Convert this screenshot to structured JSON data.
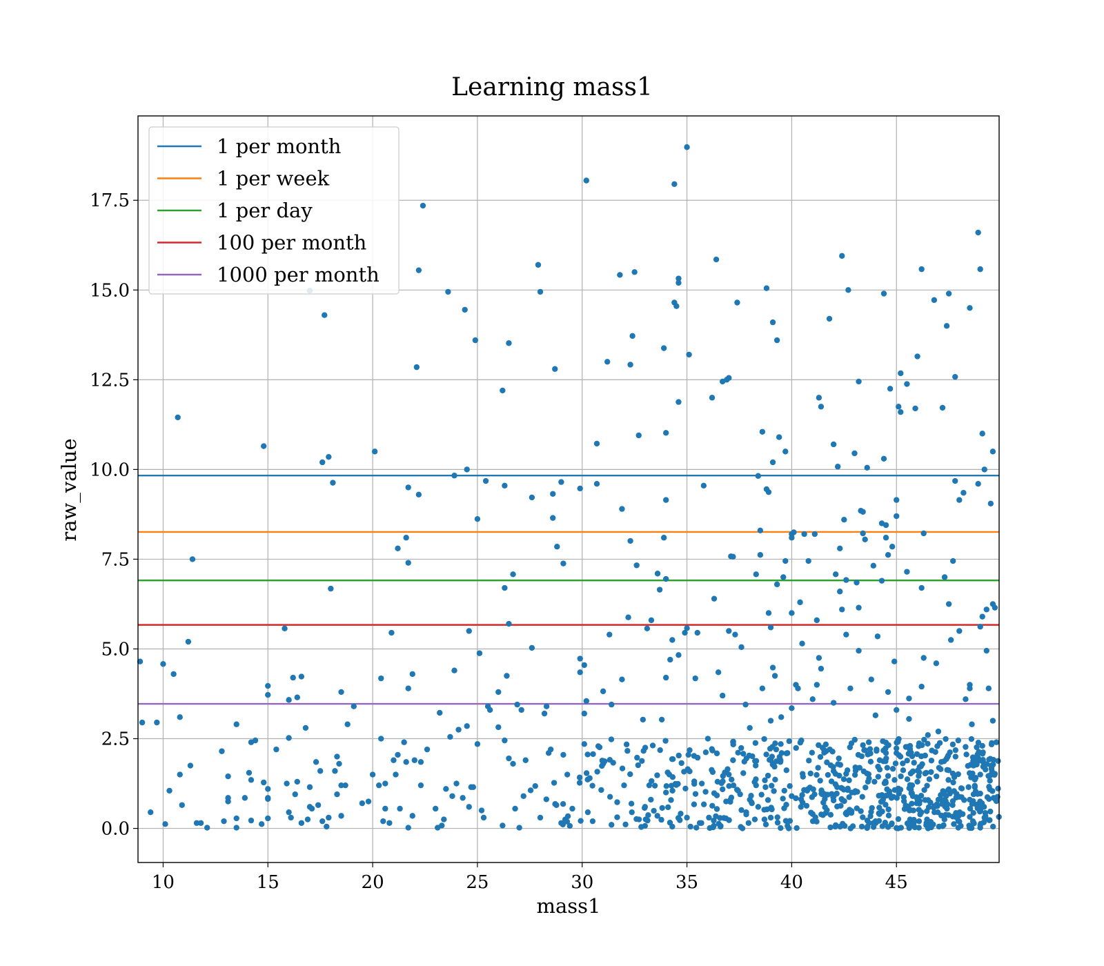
{
  "chart_data": {
    "type": "scatter",
    "title": "Learning mass1",
    "xlabel": "mass1",
    "ylabel": "raw_value",
    "xlim": [
      8.8,
      49.9
    ],
    "ylim": [
      -0.95,
      19.85
    ],
    "xticks": [
      10,
      15,
      20,
      25,
      30,
      35,
      40,
      45
    ],
    "xtick_labels": [
      "10",
      "15",
      "20",
      "25",
      "30",
      "35",
      "40",
      "45"
    ],
    "yticks": [
      0.0,
      2.5,
      5.0,
      7.5,
      10.0,
      12.5,
      15.0,
      17.5
    ],
    "ytick_labels": [
      "0.0",
      "2.5",
      "5.0",
      "7.5",
      "10.0",
      "12.5",
      "15.0",
      "17.5"
    ],
    "grid": true,
    "legend_position": "top-left",
    "point_color": "#1f77b4",
    "thresholds": [
      {
        "name": "1 per month",
        "value": 9.83,
        "color": "#1f77b4"
      },
      {
        "name": "1 per week",
        "value": 8.26,
        "color": "#ff7f0e"
      },
      {
        "name": "1 per day",
        "value": 6.91,
        "color": "#2ca02c"
      },
      {
        "name": "100 per month",
        "value": 5.67,
        "color": "#d62728"
      },
      {
        "name": "1000 per month",
        "value": 3.47,
        "color": "#9467bd"
      }
    ],
    "points": [
      [
        10.7,
        11.45
      ],
      [
        11.4,
        7.5
      ],
      [
        11.2,
        5.2
      ],
      [
        10.0,
        4.58
      ],
      [
        10.5,
        4.3
      ],
      [
        8.9,
        4.65
      ],
      [
        10.8,
        3.1
      ],
      [
        9.0,
        2.95
      ],
      [
        9.7,
        2.95
      ],
      [
        10.8,
        1.5
      ],
      [
        11.3,
        1.75
      ],
      [
        10.3,
        1.05
      ],
      [
        10.9,
        0.65
      ],
      [
        9.4,
        0.45
      ],
      [
        10.1,
        0.12
      ],
      [
        11.6,
        0.15
      ],
      [
        11.8,
        0.15
      ],
      [
        12.1,
        0.02
      ],
      [
        14.8,
        10.65
      ],
      [
        15.0,
        3.97
      ],
      [
        15.0,
        3.72
      ],
      [
        13.5,
        2.9
      ],
      [
        12.8,
        2.15
      ],
      [
        13.1,
        1.45
      ],
      [
        13.1,
        0.85
      ],
      [
        13.1,
        0.75
      ],
      [
        13.9,
        0.85
      ],
      [
        14.1,
        1.55
      ],
      [
        14.2,
        1.35
      ],
      [
        14.2,
        2.4
      ],
      [
        14.4,
        2.45
      ],
      [
        14.8,
        1.28
      ],
      [
        15.0,
        1.1
      ],
      [
        15.0,
        0.85
      ],
      [
        15.0,
        0.82
      ],
      [
        12.9,
        0.2
      ],
      [
        13.5,
        0.28
      ],
      [
        14.2,
        0.22
      ],
      [
        14.7,
        0.12
      ],
      [
        15.0,
        0.28
      ],
      [
        13.5,
        0.02
      ],
      [
        15.8,
        5.57
      ],
      [
        16.0,
        3.58
      ],
      [
        16.2,
        4.2
      ],
      [
        16.6,
        4.23
      ],
      [
        16.4,
        3.65
      ],
      [
        16.0,
        2.52
      ],
      [
        16.8,
        2.8
      ],
      [
        15.9,
        1.25
      ],
      [
        15.4,
        2.2
      ],
      [
        16.0,
        0.45
      ],
      [
        16.1,
        0.3
      ],
      [
        16.4,
        1.3
      ],
      [
        16.6,
        0.15
      ],
      [
        16.9,
        0.25
      ],
      [
        17.0,
        0.6
      ],
      [
        17.0,
        1.15
      ],
      [
        17.1,
        0.55
      ],
      [
        16.3,
        0.95
      ],
      [
        17.0,
        14.98
      ],
      [
        17.7,
        14.3
      ],
      [
        17.6,
        10.2
      ],
      [
        17.9,
        10.35
      ],
      [
        18.1,
        9.63
      ],
      [
        18.0,
        6.68
      ],
      [
        18.5,
        3.8
      ],
      [
        17.3,
        1.85
      ],
      [
        17.5,
        1.6
      ],
      [
        17.4,
        0.65
      ],
      [
        17.8,
        0.05
      ],
      [
        17.9,
        0.3
      ],
      [
        18.3,
        2.0
      ],
      [
        18.2,
        1.6
      ],
      [
        18.3,
        0.95
      ],
      [
        18.5,
        1.2
      ],
      [
        18.7,
        1.2
      ],
      [
        18.4,
        1.8
      ],
      [
        18.8,
        2.9
      ],
      [
        18.5,
        0.35
      ],
      [
        17.6,
        0.2
      ],
      [
        19.1,
        3.4
      ],
      [
        19.5,
        0.7
      ],
      [
        19.8,
        0.75
      ],
      [
        20.0,
        1.5
      ],
      [
        20.1,
        10.5
      ],
      [
        20.4,
        4.18
      ],
      [
        20.4,
        2.5
      ],
      [
        20.3,
        1.2
      ],
      [
        20.6,
        1.25
      ],
      [
        20.5,
        0.2
      ],
      [
        20.8,
        0.15
      ],
      [
        20.9,
        5.45
      ],
      [
        21.0,
        1.9
      ],
      [
        21.1,
        1.5
      ],
      [
        21.2,
        2.05
      ],
      [
        21.3,
        0.55
      ],
      [
        21.5,
        2.4
      ],
      [
        21.6,
        1.85
      ],
      [
        21.2,
        7.8
      ],
      [
        21.6,
        8.1
      ],
      [
        21.7,
        7.4
      ],
      [
        21.7,
        3.9
      ],
      [
        21.7,
        9.5
      ],
      [
        21.9,
        4.3
      ],
      [
        22.0,
        1.9
      ],
      [
        22.1,
        12.85
      ],
      [
        22.2,
        9.3
      ],
      [
        22.3,
        1.85
      ],
      [
        22.4,
        17.35
      ],
      [
        22.6,
        2.2
      ],
      [
        22.2,
        15.55
      ],
      [
        21.9,
        0.35
      ],
      [
        21.7,
        0.02
      ],
      [
        22.3,
        1.2
      ],
      [
        20.6,
        0.55
      ],
      [
        23.2,
        3.22
      ],
      [
        23.1,
        0.02
      ],
      [
        23.3,
        0.08
      ],
      [
        23.6,
        14.95
      ],
      [
        23.9,
        9.83
      ],
      [
        23.9,
        4.4
      ],
      [
        23.7,
        2.55
      ],
      [
        23.8,
        0.9
      ],
      [
        24.1,
        2.75
      ],
      [
        24.3,
        0.85
      ],
      [
        24.4,
        14.45
      ],
      [
        24.5,
        10.0
      ],
      [
        24.6,
        5.5
      ],
      [
        24.5,
        2.85
      ],
      [
        24.7,
        1.15
      ],
      [
        24.9,
        13.6
      ],
      [
        25.0,
        8.62
      ],
      [
        25.1,
        4.88
      ],
      [
        25.4,
        9.68
      ],
      [
        25.5,
        3.4
      ],
      [
        25.0,
        2.35
      ],
      [
        25.2,
        0.5
      ],
      [
        25.3,
        0.3
      ],
      [
        24.0,
        1.25
      ],
      [
        23.5,
        1.1
      ],
      [
        24.8,
        1.15
      ],
      [
        25.6,
        3.3
      ],
      [
        23.0,
        0.55
      ],
      [
        23.4,
        0.25
      ],
      [
        24.6,
        0.6
      ],
      [
        26.2,
        12.2
      ],
      [
        26.5,
        13.52
      ],
      [
        26.3,
        9.55
      ],
      [
        26.3,
        6.7
      ],
      [
        26.7,
        7.08
      ],
      [
        26.5,
        5.7
      ],
      [
        26.4,
        4.25
      ],
      [
        26.0,
        3.8
      ],
      [
        26.0,
        2.82
      ],
      [
        26.3,
        2.45
      ],
      [
        26.5,
        1.95
      ],
      [
        26.7,
        1.8
      ],
      [
        26.9,
        3.45
      ],
      [
        27.1,
        3.3
      ],
      [
        27.3,
        1.9
      ],
      [
        27.6,
        9.22
      ],
      [
        27.6,
        5.03
      ],
      [
        27.9,
        15.7
      ],
      [
        28.0,
        14.95
      ],
      [
        28.2,
        3.2
      ],
      [
        28.3,
        3.4
      ],
      [
        28.4,
        2.1
      ],
      [
        28.6,
        9.32
      ],
      [
        28.6,
        8.65
      ],
      [
        28.8,
        7.85
      ],
      [
        28.7,
        12.8
      ],
      [
        29.0,
        9.65
      ],
      [
        29.1,
        7.38
      ],
      [
        29.1,
        2.05
      ],
      [
        28.5,
        2.2
      ],
      [
        27.2,
        0.9
      ],
      [
        26.8,
        0.55
      ],
      [
        28.0,
        0.3
      ],
      [
        29.0,
        0.15
      ],
      [
        27.0,
        0.02
      ],
      [
        26.2,
        0.08
      ],
      [
        29.9,
        9.47
      ],
      [
        29.9,
        4.73
      ],
      [
        29.9,
        4.35
      ],
      [
        30.1,
        4.55
      ],
      [
        30.2,
        18.05
      ],
      [
        30.2,
        3.55
      ],
      [
        30.1,
        3.2
      ],
      [
        30.1,
        2.35
      ],
      [
        30.7,
        10.72
      ],
      [
        30.7,
        9.6
      ],
      [
        31.0,
        3.82
      ],
      [
        31.2,
        13.0
      ],
      [
        31.3,
        5.4
      ],
      [
        31.4,
        3.45
      ],
      [
        31.8,
        15.42
      ],
      [
        31.9,
        8.9
      ],
      [
        31.9,
        4.15
      ],
      [
        32.2,
        5.88
      ],
      [
        32.3,
        12.92
      ],
      [
        32.4,
        13.72
      ],
      [
        32.3,
        8.01
      ],
      [
        32.5,
        15.5
      ],
      [
        32.6,
        7.33
      ],
      [
        32.7,
        10.95
      ],
      [
        32.9,
        3.03
      ],
      [
        33.1,
        5.57
      ],
      [
        33.3,
        5.8
      ],
      [
        33.6,
        7.1
      ],
      [
        33.7,
        6.65
      ],
      [
        33.9,
        13.38
      ],
      [
        33.9,
        8.1
      ],
      [
        34.0,
        11.02
      ],
      [
        34.0,
        9.15
      ],
      [
        34.0,
        6.95
      ],
      [
        34.2,
        4.7
      ],
      [
        34.3,
        5.25
      ],
      [
        34.4,
        14.65
      ],
      [
        34.5,
        14.55
      ],
      [
        34.4,
        17.95
      ],
      [
        34.6,
        15.2
      ],
      [
        34.6,
        15.32
      ],
      [
        34.6,
        11.88
      ],
      [
        34.6,
        4.83
      ],
      [
        34.9,
        5.45
      ],
      [
        35.0,
        18.98
      ],
      [
        35.0,
        5.58
      ],
      [
        35.1,
        13.2
      ],
      [
        34.0,
        4.2
      ],
      [
        33.8,
        3.03
      ],
      [
        30.5,
        0.2
      ],
      [
        31.0,
        1.8
      ],
      [
        32.0,
        1.2
      ],
      [
        33.0,
        0.6
      ],
      [
        34.0,
        1.0
      ],
      [
        35.0,
        0.3
      ],
      [
        35.4,
        4.18
      ],
      [
        35.5,
        5.45
      ],
      [
        35.8,
        9.55
      ],
      [
        36.2,
        12.0
      ],
      [
        36.3,
        6.4
      ],
      [
        36.4,
        15.85
      ],
      [
        36.5,
        4.35
      ],
      [
        36.7,
        12.45
      ],
      [
        36.7,
        3.7
      ],
      [
        36.9,
        12.5
      ],
      [
        37.0,
        12.55
      ],
      [
        37.1,
        7.58
      ],
      [
        37.2,
        7.57
      ],
      [
        37.4,
        14.65
      ],
      [
        37.3,
        5.4
      ],
      [
        37.0,
        5.5
      ],
      [
        37.6,
        5.05
      ],
      [
        38.4,
        9.82
      ],
      [
        38.5,
        8.3
      ],
      [
        38.5,
        7.62
      ],
      [
        38.3,
        7.08
      ],
      [
        38.6,
        3.9
      ],
      [
        38.6,
        11.05
      ],
      [
        38.8,
        15.05
      ],
      [
        38.8,
        9.45
      ],
      [
        38.9,
        9.37
      ],
      [
        38.9,
        6.0
      ],
      [
        39.0,
        5.6
      ],
      [
        39.1,
        10.2
      ],
      [
        39.1,
        14.1
      ],
      [
        39.3,
        13.6
      ],
      [
        39.4,
        10.9
      ],
      [
        39.3,
        6.8
      ],
      [
        39.7,
        7.45
      ],
      [
        39.7,
        10.5
      ],
      [
        39.6,
        7.0
      ],
      [
        39.1,
        4.48
      ],
      [
        39.2,
        4.25
      ],
      [
        39.5,
        3.1
      ],
      [
        39.0,
        3.0
      ],
      [
        37.8,
        3.45
      ],
      [
        38.0,
        2.8
      ],
      [
        36.0,
        2.5
      ],
      [
        37.0,
        1.5
      ],
      [
        38.0,
        0.8
      ],
      [
        39.0,
        0.3
      ],
      [
        40.0,
        8.2
      ],
      [
        40.0,
        8.1
      ],
      [
        40.1,
        8.25
      ],
      [
        40.0,
        6.0
      ],
      [
        40.2,
        4.0
      ],
      [
        40.3,
        3.9
      ],
      [
        40.4,
        6.3
      ],
      [
        40.5,
        5.15
      ],
      [
        40.6,
        8.2
      ],
      [
        40.8,
        7.45
      ],
      [
        41.0,
        3.6
      ],
      [
        41.1,
        8.2
      ],
      [
        41.2,
        5.8
      ],
      [
        41.3,
        12.0
      ],
      [
        41.4,
        11.75
      ],
      [
        41.3,
        4.75
      ],
      [
        41.4,
        4.45
      ],
      [
        41.2,
        4.0
      ],
      [
        41.8,
        14.2
      ],
      [
        42.0,
        10.7
      ],
      [
        42.2,
        10.08
      ],
      [
        42.1,
        7.08
      ],
      [
        42.3,
        6.6
      ],
      [
        42.4,
        15.95
      ],
      [
        42.3,
        7.8
      ],
      [
        42.4,
        6.1
      ],
      [
        42.5,
        8.6
      ],
      [
        42.6,
        6.92
      ],
      [
        42.7,
        15.0
      ],
      [
        42.6,
        5.4
      ],
      [
        42.8,
        3.9
      ],
      [
        43.0,
        10.45
      ],
      [
        43.1,
        6.85
      ],
      [
        43.2,
        6.15
      ],
      [
        43.2,
        4.95
      ],
      [
        43.2,
        12.45
      ],
      [
        43.3,
        8.85
      ],
      [
        43.4,
        8.82
      ],
      [
        43.4,
        8.22
      ],
      [
        43.5,
        8.05
      ],
      [
        43.6,
        10.05
      ],
      [
        43.8,
        4.15
      ],
      [
        43.9,
        7.32
      ],
      [
        44.1,
        5.35
      ],
      [
        44.3,
        6.9
      ],
      [
        44.4,
        10.3
      ],
      [
        44.3,
        8.5
      ],
      [
        44.5,
        8.45
      ],
      [
        44.4,
        14.9
      ],
      [
        44.5,
        8.1
      ],
      [
        44.6,
        7.62
      ],
      [
        44.8,
        7.85
      ],
      [
        44.7,
        12.25
      ],
      [
        44.6,
        3.8
      ],
      [
        44.9,
        4.65
      ],
      [
        45.0,
        3.3
      ],
      [
        45.1,
        11.75
      ],
      [
        45.2,
        11.6
      ],
      [
        45.2,
        12.68
      ],
      [
        45.0,
        8.7
      ],
      [
        45.0,
        9.15
      ],
      [
        45.5,
        12.38
      ],
      [
        45.5,
        7.15
      ],
      [
        45.6,
        3.62
      ],
      [
        45.9,
        11.7
      ],
      [
        46.0,
        13.15
      ],
      [
        46.2,
        15.58
      ],
      [
        46.2,
        6.7
      ],
      [
        46.3,
        8.22
      ],
      [
        46.3,
        4.75
      ],
      [
        46.2,
        3.95
      ],
      [
        46.8,
        14.72
      ],
      [
        46.9,
        4.6
      ],
      [
        47.2,
        11.72
      ],
      [
        47.3,
        7.0
      ],
      [
        47.4,
        14.0
      ],
      [
        47.5,
        14.9
      ],
      [
        47.6,
        5.25
      ],
      [
        47.5,
        6.25
      ],
      [
        47.7,
        7.45
      ],
      [
        47.8,
        9.68
      ],
      [
        47.8,
        12.58
      ],
      [
        48.0,
        9.15
      ],
      [
        48.0,
        5.5
      ],
      [
        48.2,
        9.35
      ],
      [
        48.5,
        14.5
      ],
      [
        48.9,
        16.6
      ],
      [
        48.9,
        9.6
      ],
      [
        49.0,
        15.58
      ],
      [
        49.1,
        11.0
      ],
      [
        49.2,
        10.0
      ],
      [
        49.1,
        5.9
      ],
      [
        49.0,
        5.62
      ],
      [
        49.3,
        6.1
      ],
      [
        49.5,
        9.05
      ],
      [
        49.6,
        10.5
      ],
      [
        49.6,
        6.25
      ],
      [
        49.7,
        6.15
      ],
      [
        49.3,
        4.95
      ],
      [
        48.5,
        4.0
      ],
      [
        48.5,
        3.9
      ],
      [
        48.3,
        3.6
      ],
      [
        48.6,
        2.9
      ],
      [
        49.4,
        3.9
      ],
      [
        49.6,
        3.0
      ],
      [
        45.6,
        3.05
      ],
      [
        44.0,
        3.15
      ],
      [
        42.0,
        3.5
      ],
      [
        40.0,
        3.35
      ],
      [
        46.5,
        2.6
      ],
      [
        47.0,
        2.7
      ],
      [
        46.0,
        1.3
      ],
      [
        47.0,
        0.8
      ],
      [
        48.0,
        0.4
      ],
      [
        49.0,
        1.5
      ],
      [
        40.0,
        0.9
      ],
      [
        41.0,
        0.4
      ],
      [
        42.0,
        1.6
      ],
      [
        43.0,
        1.0
      ],
      [
        44.0,
        0.2
      ],
      [
        45.0,
        2.1
      ]
    ]
  },
  "dense_band": {
    "note_free_region_xlim": [
      26.5,
      49.9
    ],
    "count": 700,
    "ylim": [
      0.0,
      2.5
    ]
  },
  "colors": {
    "background": "#ffffff",
    "axes_frame": "#000000",
    "grid": "#b0b0b0"
  }
}
